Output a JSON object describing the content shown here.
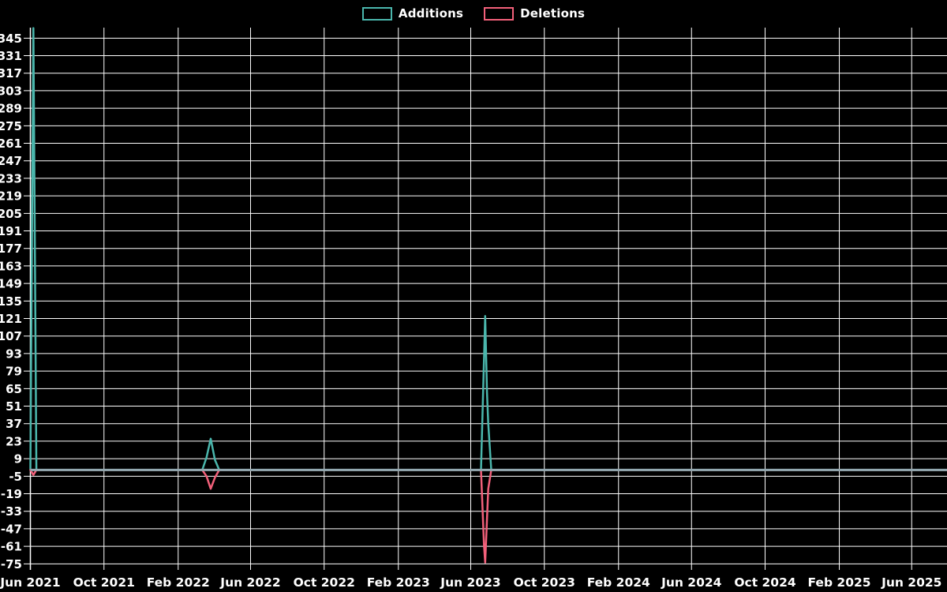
{
  "legend": {
    "items": [
      {
        "label": "Additions",
        "color": "#4ab6ac"
      },
      {
        "label": "Deletions",
        "color": "#f2607a"
      }
    ]
  },
  "colors": {
    "background": "#000000",
    "grid": "#ffffff",
    "axis": "#ffffff",
    "tick_text": "#ffffff",
    "zero_baseline": "#93a8b0",
    "additions": "#4ab6ac",
    "deletions": "#f2607a"
  },
  "chart_data": {
    "type": "line",
    "title": "",
    "xlabel": "",
    "ylabel": "",
    "grid": true,
    "legend_position": "top-center",
    "ylim": [
      -75,
      345
    ],
    "y_axis": {
      "ticks": [
        345,
        331,
        317,
        303,
        289,
        275,
        261,
        247,
        233,
        219,
        205,
        191,
        177,
        163,
        149,
        135,
        121,
        107,
        93,
        79,
        65,
        51,
        37,
        23,
        9,
        -5,
        -19,
        -33,
        -47,
        -61,
        -75
      ],
      "step": 14
    },
    "x_axis": {
      "start_date": "2021-06-01",
      "end_date": "2025-07-29",
      "ticks": [
        {
          "label": "Jun 2021",
          "date": "2021-06-01"
        },
        {
          "label": "Oct 2021",
          "date": "2021-10-01"
        },
        {
          "label": "Feb 2022",
          "date": "2022-02-01"
        },
        {
          "label": "Jun 2022",
          "date": "2022-06-01"
        },
        {
          "label": "Oct 2022",
          "date": "2022-10-01"
        },
        {
          "label": "Feb 2023",
          "date": "2023-02-01"
        },
        {
          "label": "Jun 2023",
          "date": "2023-06-01"
        },
        {
          "label": "Oct 2023",
          "date": "2023-10-01"
        },
        {
          "label": "Feb 2024",
          "date": "2024-02-01"
        },
        {
          "label": "Jun 2024",
          "date": "2024-06-01"
        },
        {
          "label": "Oct 2024",
          "date": "2024-10-01"
        },
        {
          "label": "Feb 2025",
          "date": "2025-02-01"
        },
        {
          "label": "Jun 2025",
          "date": "2025-06-01"
        }
      ]
    },
    "zero_baseline_value": 0,
    "series": [
      {
        "name": "Additions",
        "color": "#4ab6ac",
        "points": [
          [
            "2021-06-01",
            0
          ],
          [
            "2021-06-06",
            353
          ],
          [
            "2021-06-11",
            0
          ],
          [
            "2022-03-13",
            0
          ],
          [
            "2022-03-20",
            10
          ],
          [
            "2022-03-27",
            25
          ],
          [
            "2022-04-03",
            8
          ],
          [
            "2022-04-10",
            0
          ],
          [
            "2023-06-18",
            0
          ],
          [
            "2023-06-25",
            123
          ],
          [
            "2023-06-28",
            62
          ],
          [
            "2023-06-30",
            37
          ],
          [
            "2023-07-05",
            0
          ],
          [
            "2025-07-29",
            0
          ]
        ]
      },
      {
        "name": "Deletions",
        "color": "#f2607a",
        "points": [
          [
            "2021-06-01",
            0
          ],
          [
            "2021-06-06",
            -4
          ],
          [
            "2021-06-11",
            0
          ],
          [
            "2022-03-13",
            0
          ],
          [
            "2022-03-20",
            -5
          ],
          [
            "2022-03-27",
            -15
          ],
          [
            "2022-04-03",
            -6
          ],
          [
            "2022-04-10",
            0
          ],
          [
            "2023-06-18",
            0
          ],
          [
            "2023-06-23",
            -60
          ],
          [
            "2023-06-25",
            -74
          ],
          [
            "2023-06-30",
            -15
          ],
          [
            "2023-07-05",
            0
          ],
          [
            "2025-07-29",
            0
          ]
        ]
      }
    ]
  }
}
